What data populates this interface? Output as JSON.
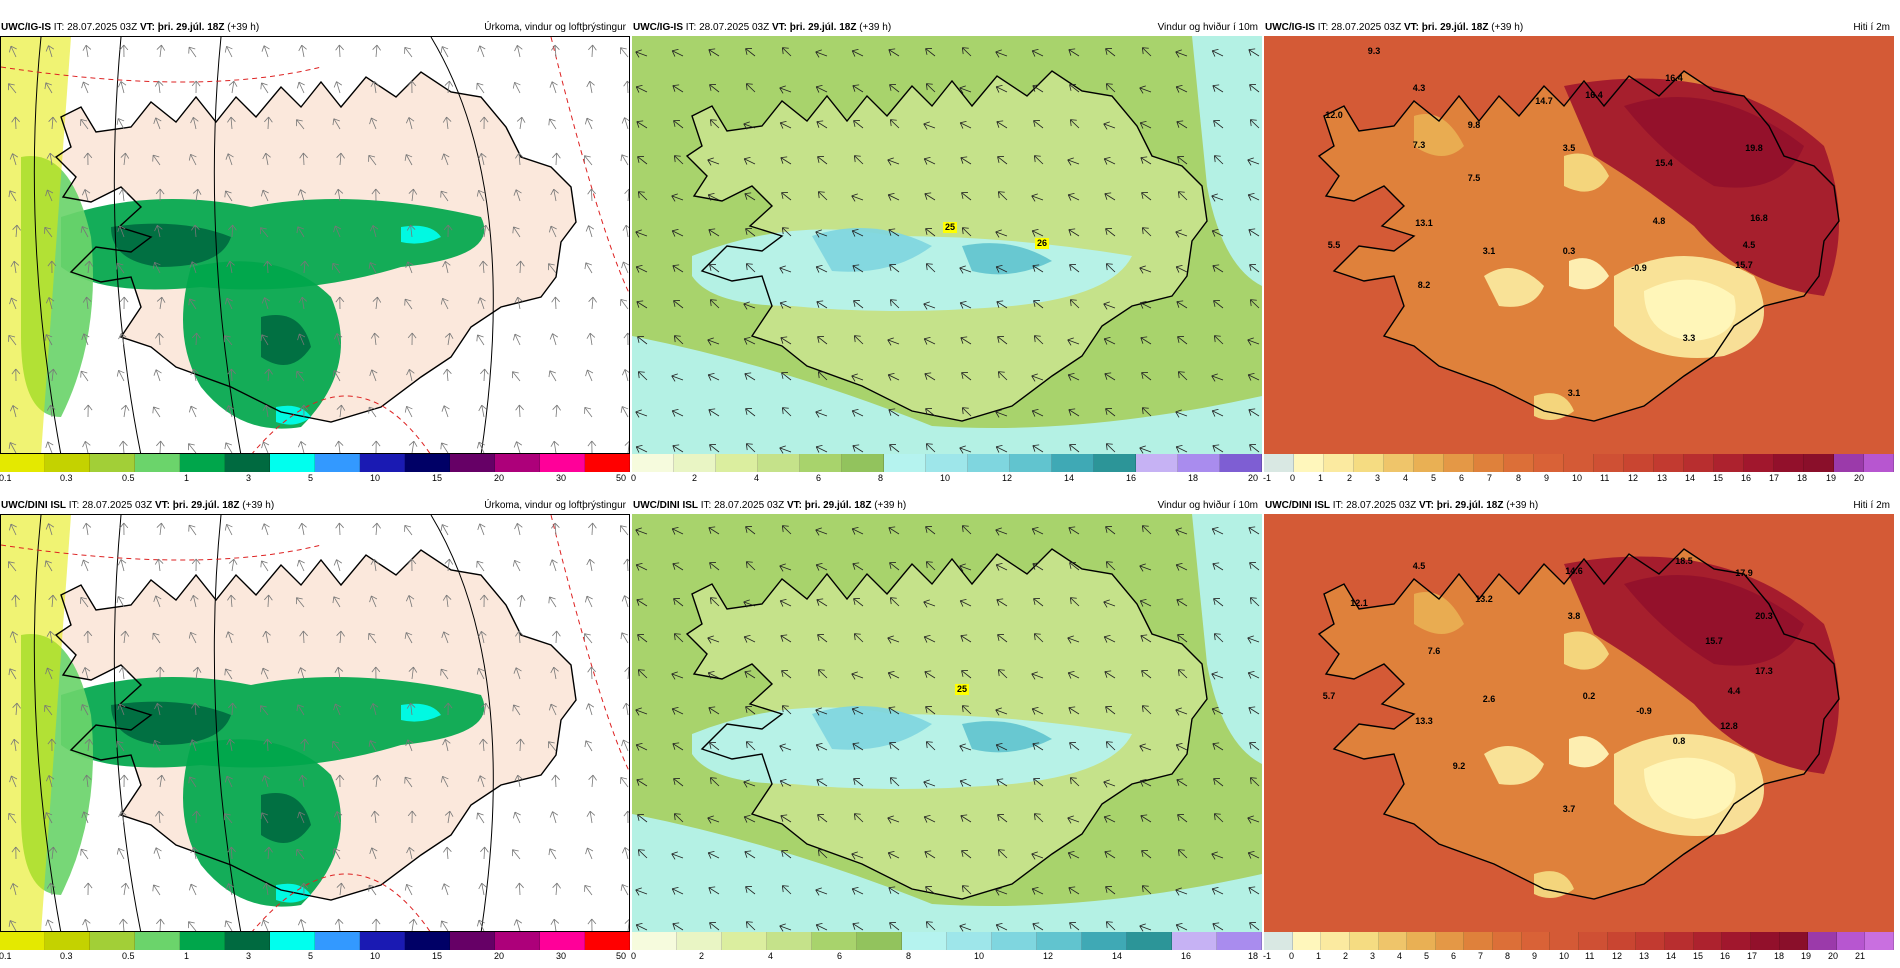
{
  "panels": [
    {
      "id": "p1",
      "model": "UWC/IG-IS",
      "it": " IT: 28.07.2025 03Z ",
      "vt_label": "VT:",
      "vt_value": " þri. 29.júl. 18Z ",
      "lead": "(+39 h)",
      "title": "Úrkoma, vindur og loftþrýstingur",
      "field": "precip",
      "scale": [
        "#e4e900",
        "#c4d200",
        "#a2cf37",
        "#6bd46b",
        "#00a64b",
        "#006a40",
        "#00ffee",
        "#3399ff",
        "#1a1ab3",
        "#000066",
        "#660066",
        "#ad007a",
        "#ff0099",
        "#ff0000"
      ],
      "ticks": [
        "0.1",
        "0.3",
        "0.5",
        "1",
        "3",
        "5",
        "10",
        "15",
        "20",
        "30",
        "50"
      ],
      "labels": []
    },
    {
      "id": "p2",
      "model": "UWC/IG-IS",
      "it": " IT: 28.07.2025 03Z ",
      "vt_label": "VT:",
      "vt_value": " þri. 29.júl. 18Z ",
      "lead": "(+39 h)",
      "title": "Vindur og hviður í 10m",
      "field": "wind",
      "scale": [
        "#f6fbdd",
        "#e9f5c4",
        "#dbee9f",
        "#c5e28a",
        "#a8d36c",
        "#92c35d",
        "#b5f3ef",
        "#9ee6ea",
        "#7fd6df",
        "#61c4cf",
        "#3fa9b5",
        "#2c9598",
        "#c6b2f4",
        "#a98cee",
        "#7e5ed3"
      ],
      "ticks": [
        "0",
        "2",
        "4",
        "6",
        "8",
        "10",
        "12",
        "14",
        "16",
        "18",
        "20"
      ],
      "labels": [
        "25",
        "26"
      ]
    },
    {
      "id": "p3",
      "model": "UWC/IG-IS",
      "it": " IT: 28.07.2025 03Z ",
      "vt_label": "VT:",
      "vt_value": " þri. 29.júl. 18Z ",
      "lead": "(+39 h)",
      "title": "Hiti í 2m",
      "field": "temp",
      "scale": [
        "#d9e8e3",
        "#fff7bc",
        "#fbeaa0",
        "#f5dc82",
        "#efc56a",
        "#e9b054",
        "#e49846",
        "#df813b",
        "#dc6f38",
        "#d96237",
        "#d45a36",
        "#cf5034",
        "#c94531",
        "#c23a30",
        "#b82e2f",
        "#ad222e",
        "#a1172d",
        "#92102b",
        "#8a0f2a",
        "#9b3aaa",
        "#b756d0"
      ],
      "ticks": [
        "-1",
        "0",
        "1",
        "2",
        "3",
        "4",
        "5",
        "6",
        "7",
        "8",
        "9",
        "10",
        "11",
        "12",
        "13",
        "14",
        "15",
        "16",
        "17",
        "18",
        "19",
        "20"
      ],
      "labels": [
        "9.3",
        "12.0",
        "4.3",
        "7.3",
        "9.8",
        "14.7",
        "16.4",
        "16.4",
        "3.5",
        "15.4",
        "19.8",
        "7.5",
        "13.1",
        "5.5",
        "8.2",
        "3.1",
        "0.3",
        "4.8",
        "16.8",
        "4.5",
        "-0.9",
        "15.7",
        "3.3",
        "3.1"
      ]
    },
    {
      "id": "p4",
      "model": "UWC/DINI ISL",
      "it": " IT: 28.07.2025 03Z ",
      "vt_label": "VT:",
      "vt_value": " þri. 29.júl. 18Z ",
      "lead": "(+39 h)",
      "title": "Úrkoma, vindur og loftþrýstingur",
      "field": "precip",
      "scale": [
        "#e4e900",
        "#c4d200",
        "#a2cf37",
        "#6bd46b",
        "#00a64b",
        "#006a40",
        "#00ffee",
        "#3399ff",
        "#1a1ab3",
        "#000066",
        "#660066",
        "#ad007a",
        "#ff0099",
        "#ff0000"
      ],
      "ticks": [
        "0.1",
        "0.3",
        "0.5",
        "1",
        "3",
        "5",
        "10",
        "15",
        "20",
        "30",
        "50"
      ],
      "labels": []
    },
    {
      "id": "p5",
      "model": "UWC/DINI ISL",
      "it": " IT: 28.07.2025 03Z ",
      "vt_label": "VT:",
      "vt_value": " þri. 29.júl. 18Z ",
      "lead": "(+39 h)",
      "title": "Vindur og hviður í 10m",
      "field": "wind",
      "scale": [
        "#f6fbdd",
        "#e9f5c4",
        "#dbee9f",
        "#c5e28a",
        "#a8d36c",
        "#92c35d",
        "#b5f3ef",
        "#9ee6ea",
        "#7fd6df",
        "#61c4cf",
        "#3fa9b5",
        "#2c9598",
        "#c6b2f4",
        "#a98cee"
      ],
      "ticks": [
        "0",
        "2",
        "4",
        "6",
        "8",
        "10",
        "12",
        "14",
        "16",
        "18"
      ],
      "labels": [
        "25"
      ]
    },
    {
      "id": "p6",
      "model": "UWC/DINI ISL",
      "it": " IT: 28.07.2025 03Z ",
      "vt_label": "VT:",
      "vt_value": " þri. 29.júl. 18Z ",
      "lead": "(+39 h)",
      "title": "Hiti í 2m",
      "field": "temp",
      "scale": [
        "#d9e8e3",
        "#fff7bc",
        "#fbeaa0",
        "#f5dc82",
        "#efc56a",
        "#e9b054",
        "#e49846",
        "#df813b",
        "#dc6f38",
        "#d96237",
        "#d45a36",
        "#cf5034",
        "#c94531",
        "#c23a30",
        "#b82e2f",
        "#ad222e",
        "#a1172d",
        "#92102b",
        "#8a0f2a",
        "#9b3aaa",
        "#b756d0",
        "#c96fe0"
      ],
      "ticks": [
        "-1",
        "0",
        "1",
        "2",
        "3",
        "4",
        "5",
        "6",
        "7",
        "8",
        "9",
        "10",
        "11",
        "12",
        "13",
        "14",
        "15",
        "16",
        "17",
        "18",
        "19",
        "20",
        "21"
      ],
      "labels": [
        "4.5",
        "14.6",
        "18.5",
        "17.9",
        "12.1",
        "13.2",
        "3.8",
        "20.3",
        "15.7",
        "7.6",
        "17.3",
        "5.7",
        "2.6",
        "0.2",
        "-0.9",
        "4.4",
        "13.3",
        "12.8",
        "0.8",
        "9.2",
        "3.7"
      ]
    }
  ]
}
